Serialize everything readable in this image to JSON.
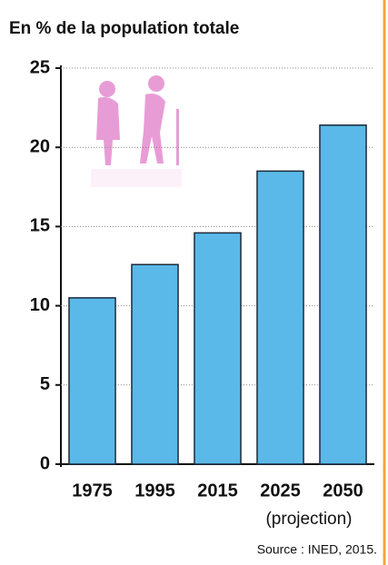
{
  "chart_data": {
    "type": "bar",
    "title": "En % de la population totale",
    "categories": [
      "1975",
      "1995",
      "2015",
      "2025",
      "2050"
    ],
    "values": [
      10.5,
      12.6,
      14.6,
      18.5,
      21.4
    ],
    "color": "#5ab9e8",
    "ylim": [
      0,
      25
    ],
    "yticks": [
      0,
      5,
      10,
      15,
      20,
      25
    ],
    "grid": true,
    "note": "(projection)",
    "source": "Source : INED, 2015."
  }
}
